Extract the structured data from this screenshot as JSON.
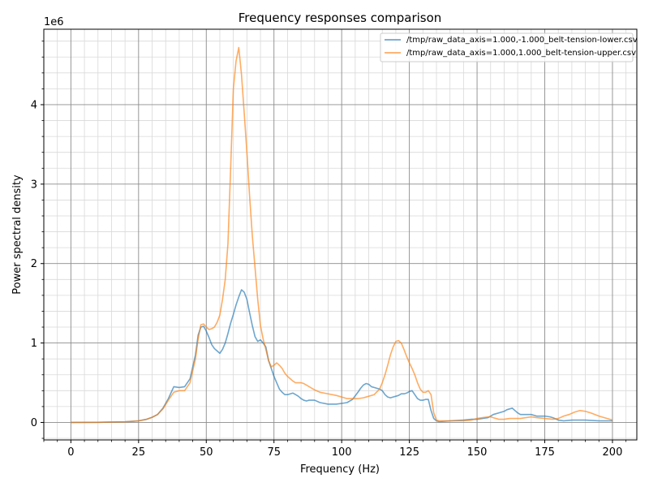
{
  "chart_data": {
    "type": "line",
    "title": "Frequency responses comparison",
    "xlabel": "Frequency (Hz)",
    "ylabel": "Power spectral density",
    "y_scale_label": "1e6",
    "xlim": [
      -10,
      209
    ],
    "ylim": [
      -0.22,
      4.95
    ],
    "x_ticks": [
      0,
      25,
      50,
      75,
      100,
      125,
      150,
      175,
      200
    ],
    "y_ticks": [
      0,
      1,
      2,
      3,
      4
    ],
    "x_minor_step": 5,
    "y_minor_step": 0.2,
    "grid": true,
    "legend_position": "top-right",
    "series": [
      {
        "name": "/tmp/raw_data_axis=1.000,-1.000_belt-tension-lower.csv",
        "color": "#1f77b4",
        "x": [
          0,
          10,
          20,
          25,
          28,
          30,
          32,
          34,
          36,
          38,
          40,
          42,
          44,
          46,
          47,
          48,
          49,
          50,
          51,
          52,
          53,
          54,
          55,
          56,
          57,
          58,
          59,
          60,
          61,
          62,
          63,
          64,
          65,
          66,
          67,
          68,
          69,
          70,
          71,
          72,
          73,
          74,
          75,
          76,
          77,
          78,
          79,
          80,
          81,
          82,
          83,
          84,
          85,
          86,
          87,
          88,
          89,
          90,
          92,
          95,
          98,
          100,
          102,
          104,
          106,
          107,
          108,
          109,
          110,
          111,
          112,
          113,
          114,
          115,
          116,
          117,
          118,
          119,
          120,
          121,
          122,
          123,
          124,
          125,
          126,
          127,
          128,
          129,
          130,
          131,
          132,
          133,
          134,
          135,
          136,
          140,
          145,
          148,
          150,
          152,
          154,
          155,
          156,
          158,
          160,
          161,
          162,
          163,
          164,
          165,
          166,
          168,
          170,
          172,
          175,
          177,
          178,
          180,
          182,
          185,
          188,
          190,
          195,
          200
        ],
        "y": [
          0,
          0.002,
          0.008,
          0.02,
          0.04,
          0.065,
          0.1,
          0.18,
          0.3,
          0.45,
          0.44,
          0.45,
          0.55,
          0.85,
          1.1,
          1.2,
          1.21,
          1.15,
          1.07,
          0.98,
          0.93,
          0.9,
          0.87,
          0.92,
          1.0,
          1.12,
          1.25,
          1.36,
          1.48,
          1.58,
          1.67,
          1.64,
          1.55,
          1.38,
          1.22,
          1.08,
          1.02,
          1.04,
          1.0,
          0.95,
          0.78,
          0.68,
          0.58,
          0.5,
          0.42,
          0.38,
          0.35,
          0.35,
          0.36,
          0.37,
          0.35,
          0.33,
          0.3,
          0.28,
          0.27,
          0.28,
          0.28,
          0.28,
          0.25,
          0.23,
          0.23,
          0.24,
          0.25,
          0.29,
          0.38,
          0.43,
          0.47,
          0.49,
          0.48,
          0.45,
          0.44,
          0.43,
          0.42,
          0.4,
          0.35,
          0.32,
          0.31,
          0.32,
          0.33,
          0.34,
          0.36,
          0.36,
          0.37,
          0.39,
          0.4,
          0.35,
          0.3,
          0.28,
          0.28,
          0.29,
          0.29,
          0.15,
          0.05,
          0.02,
          0.01,
          0.02,
          0.03,
          0.04,
          0.04,
          0.05,
          0.06,
          0.08,
          0.1,
          0.12,
          0.14,
          0.16,
          0.17,
          0.18,
          0.15,
          0.12,
          0.1,
          0.1,
          0.1,
          0.08,
          0.08,
          0.07,
          0.06,
          0.03,
          0.02,
          0.03,
          0.03,
          0.03,
          0.02,
          0.02
        ]
      },
      {
        "name": "/tmp/raw_data_axis=1.000,1.000_belt-tension-upper.csv",
        "color": "#ff7f0e",
        "x": [
          0,
          10,
          20,
          25,
          28,
          30,
          32,
          34,
          36,
          38,
          40,
          42,
          44,
          46,
          47,
          48,
          49,
          50,
          51,
          52,
          53,
          54,
          55,
          56,
          57,
          58,
          59,
          60,
          61,
          62,
          63,
          64,
          65,
          66,
          67,
          68,
          69,
          70,
          71,
          72,
          73,
          74,
          75,
          76,
          77,
          78,
          79,
          80,
          81,
          82,
          83,
          84,
          85,
          86,
          87,
          88,
          89,
          90,
          92,
          95,
          98,
          100,
          102,
          104,
          106,
          108,
          110,
          112,
          114,
          115,
          116,
          117,
          118,
          119,
          120,
          121,
          122,
          123,
          124,
          125,
          126,
          127,
          128,
          129,
          130,
          131,
          132,
          133,
          134,
          135,
          136,
          140,
          145,
          148,
          150,
          152,
          154,
          155,
          156,
          158,
          160,
          162,
          164,
          166,
          168,
          170,
          172,
          175,
          178,
          180,
          182,
          184,
          186,
          188,
          190,
          192,
          195,
          200
        ],
        "y": [
          0,
          0.002,
          0.008,
          0.02,
          0.04,
          0.065,
          0.1,
          0.17,
          0.28,
          0.38,
          0.4,
          0.4,
          0.5,
          0.8,
          1.05,
          1.23,
          1.24,
          1.2,
          1.17,
          1.18,
          1.2,
          1.26,
          1.35,
          1.55,
          1.8,
          2.25,
          3.2,
          4.2,
          4.55,
          4.72,
          4.38,
          3.9,
          3.4,
          2.85,
          2.35,
          1.95,
          1.55,
          1.22,
          1.05,
          0.92,
          0.78,
          0.7,
          0.72,
          0.75,
          0.72,
          0.68,
          0.62,
          0.58,
          0.55,
          0.52,
          0.5,
          0.5,
          0.5,
          0.49,
          0.47,
          0.45,
          0.43,
          0.41,
          0.38,
          0.36,
          0.34,
          0.32,
          0.3,
          0.3,
          0.3,
          0.31,
          0.33,
          0.35,
          0.42,
          0.5,
          0.6,
          0.72,
          0.85,
          0.95,
          1.02,
          1.03,
          1.0,
          0.92,
          0.83,
          0.75,
          0.68,
          0.6,
          0.5,
          0.42,
          0.38,
          0.38,
          0.4,
          0.35,
          0.12,
          0.03,
          0.02,
          0.02,
          0.02,
          0.03,
          0.05,
          0.06,
          0.07,
          0.07,
          0.06,
          0.04,
          0.04,
          0.05,
          0.05,
          0.05,
          0.06,
          0.07,
          0.06,
          0.05,
          0.04,
          0.05,
          0.08,
          0.1,
          0.13,
          0.15,
          0.14,
          0.12,
          0.08,
          0.03
        ]
      }
    ]
  }
}
